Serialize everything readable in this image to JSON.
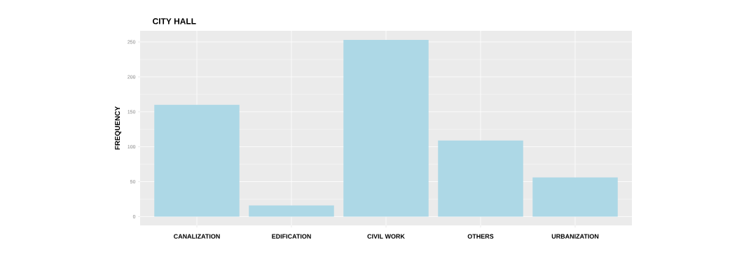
{
  "chart_data": {
    "type": "bar",
    "title": "CITY HALL",
    "ylabel": "FREQUENCY",
    "categories": [
      "CANALIZATION",
      "EDIFICATION",
      "CIVIL WORK",
      "OTHERS",
      "URBANIZATION"
    ],
    "values": [
      160,
      16,
      253,
      109,
      56
    ],
    "color": "#add8e6",
    "ylim": [
      -12.6,
      266
    ],
    "yticks": [
      0,
      50,
      100,
      150,
      200,
      250
    ],
    "grid": true
  }
}
